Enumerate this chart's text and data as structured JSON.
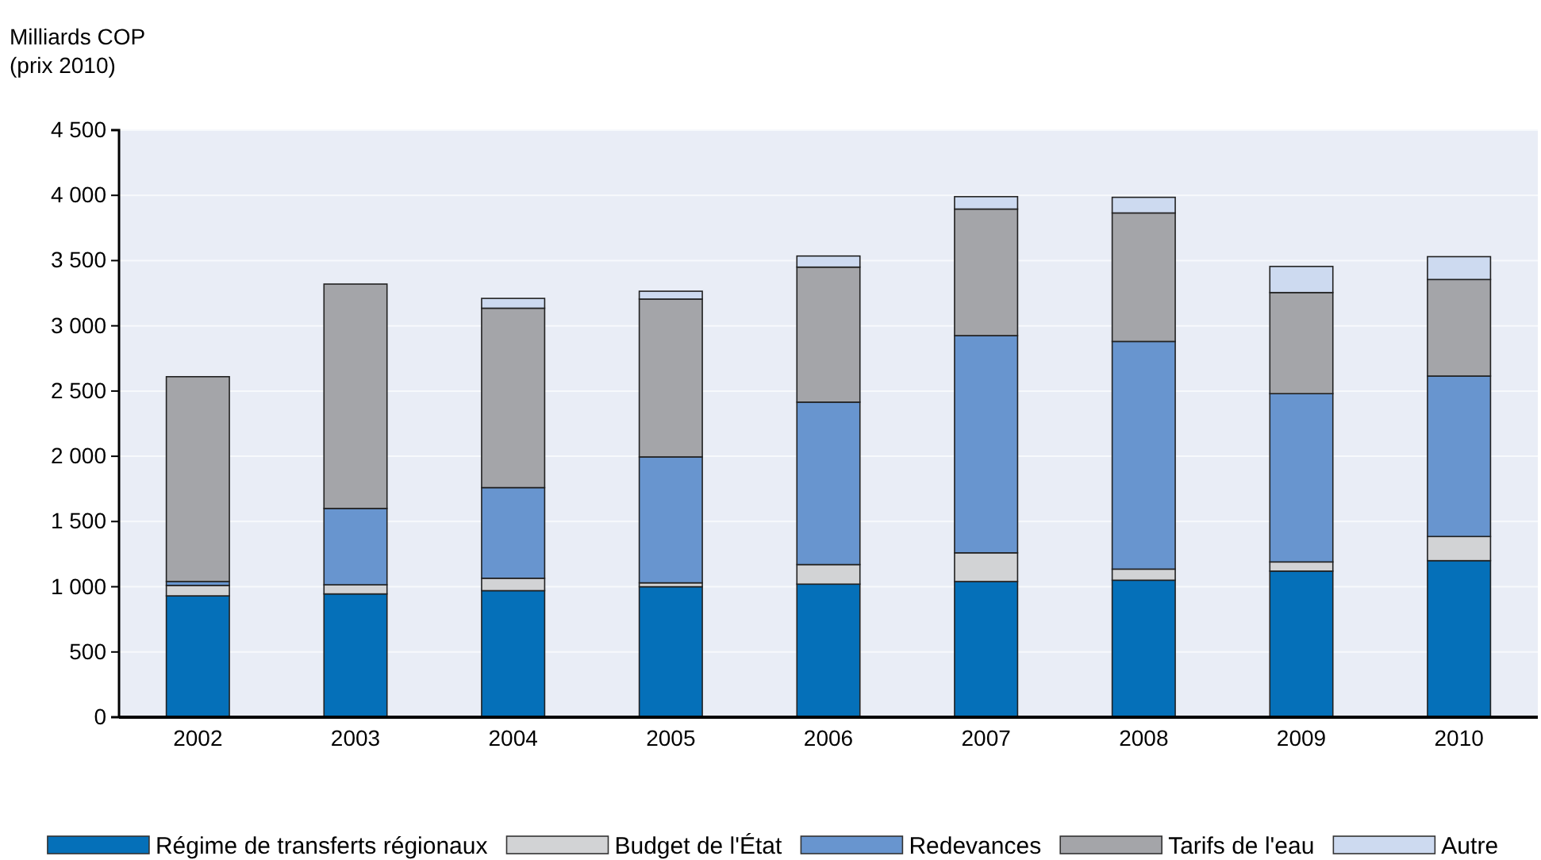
{
  "chart_data": {
    "type": "bar",
    "stacked": true,
    "ylabel": "Milliards COP\n(prix 2010)",
    "categories": [
      "2002",
      "2003",
      "2004",
      "2005",
      "2006",
      "2007",
      "2008",
      "2009",
      "2010"
    ],
    "series": [
      {
        "name": "Régime de transferts régionaux",
        "color": "#0570b9",
        "values": [
          930,
          945,
          970,
          1000,
          1020,
          1040,
          1050,
          1120,
          1200
        ]
      },
      {
        "name": "Budget de l'État",
        "color": "#d2d3d5",
        "values": [
          80,
          70,
          95,
          30,
          150,
          220,
          85,
          70,
          185
        ]
      },
      {
        "name": "Redevances",
        "color": "#6895cf",
        "values": [
          30,
          585,
          695,
          965,
          1245,
          1665,
          1745,
          1290,
          1230
        ]
      },
      {
        "name": "Tarifs de l'eau",
        "color": "#a4a5a9",
        "values": [
          1570,
          1720,
          1375,
          1210,
          1035,
          970,
          985,
          775,
          740
        ]
      },
      {
        "name": "Autre",
        "color": "#cddaf0",
        "values": [
          0,
          0,
          75,
          60,
          85,
          95,
          120,
          200,
          175
        ]
      }
    ],
    "ylim": [
      0,
      4500
    ],
    "yticks": [
      0,
      500,
      {
        "value": 1000,
        "label": "1 000"
      },
      {
        "value": 1500,
        "label": "1 500"
      },
      {
        "value": 2000,
        "label": "2 000"
      },
      {
        "value": 2500,
        "label": "2 500"
      },
      {
        "value": 3000,
        "label": "3 000"
      },
      {
        "value": 3500,
        "label": "3 500"
      },
      {
        "value": 4000,
        "label": "4 000"
      },
      {
        "value": 4500,
        "label": "4 500"
      }
    ],
    "grid": "y",
    "legend": "bottom"
  }
}
